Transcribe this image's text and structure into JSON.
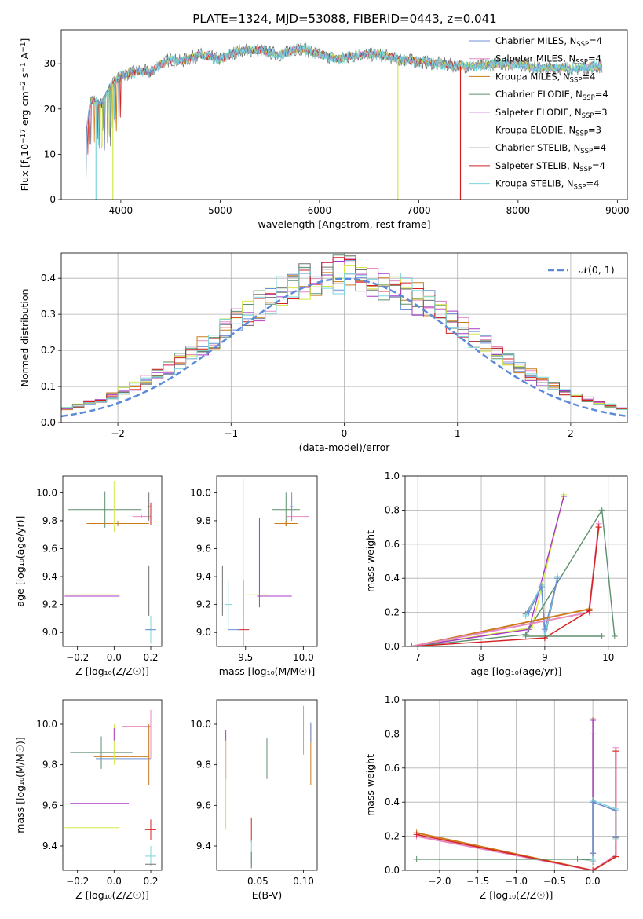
{
  "figure_title": "PLATE=1324, MJD=53088, FIBERID=0443, z=0.041",
  "colors": {
    "Chabrier MILES": "#6b8fd6",
    "Salpeter MILES": "#e78ac3",
    "Kroupa MILES": "#cc7a1a",
    "Chabrier ELODIE": "#5e8f6e",
    "Salpeter ELODIE": "#a838c8",
    "Kroupa ELODIE": "#d4e84a",
    "Chabrier STELIB": "#707070",
    "Salpeter STELIB": "#d42020",
    "Kroupa STELIB": "#7dd5dd",
    "gauss": "#5b8ad8"
  },
  "chart_data": [
    {
      "id": "spectrum",
      "type": "line",
      "xlabel": "wavelength [Angstrom, rest frame]",
      "ylabel_parts": {
        "pre": "Flux [f",
        "sub1": "λ",
        "mid": "10",
        "sup1": "−17",
        "post1": " erg cm",
        "sup2": "−2",
        "post2": " s",
        "sup3": "−1",
        "post3": " A",
        "sup4": "−1",
        "post4": "]"
      },
      "xlim": [
        3400,
        9100
      ],
      "ylim": [
        0,
        37.5
      ],
      "xticks": [
        4000,
        5000,
        6000,
        7000,
        8000,
        9000
      ],
      "yticks": [
        0,
        10,
        20,
        30
      ],
      "legend_loc": "upper right",
      "legend": [
        {
          "label": "Chabrier MILES, N",
          "sub": "SSP",
          "tail": "=4"
        },
        {
          "label": "Salpeter MILES, N",
          "sub": "SSP",
          "tail": "=4"
        },
        {
          "label": "Kroupa MILES, N",
          "sub": "SSP",
          "tail": "=4"
        },
        {
          "label": "Chabrier ELODIE, N",
          "sub": "SSP",
          "tail": "=4"
        },
        {
          "label": "Salpeter ELODIE, N",
          "sub": "SSP",
          "tail": "=3"
        },
        {
          "label": "Kroupa ELODIE, N",
          "sub": "SSP",
          "tail": "=3"
        },
        {
          "label": "Chabrier STELIB, N",
          "sub": "SSP",
          "tail": "=4"
        },
        {
          "label": "Salpeter STELIB, N",
          "sub": "SSP",
          "tail": "=4"
        },
        {
          "label": "Kroupa STELIB, N",
          "sub": "SSP",
          "tail": "=4"
        }
      ],
      "continuum": {
        "x": [
          3650,
          3700,
          3800,
          3900,
          4000,
          4100,
          4200,
          4300,
          4400,
          4500,
          4600,
          4800,
          5000,
          5200,
          5400,
          5600,
          5800,
          6000,
          6200,
          6400,
          6600,
          6800,
          7000,
          7200,
          7400,
          7600,
          7800,
          8000,
          8200,
          8400,
          8600,
          8850
        ],
        "y": [
          15,
          22,
          21,
          25,
          27.5,
          28,
          28.5,
          28,
          30,
          31,
          30.5,
          32,
          31,
          33,
          33,
          32,
          33.5,
          32,
          31,
          32,
          32,
          31,
          30.5,
          30,
          29.5,
          29.5,
          30,
          30,
          29,
          29,
          29,
          29.5
        ]
      },
      "dropouts": [
        {
          "series": "Kroupa STELIB",
          "x": 3750,
          "y": 0
        },
        {
          "series": "Kroupa ELODIE",
          "x": 3920,
          "y": 0
        },
        {
          "series": "Kroupa ELODIE",
          "x": 6790,
          "y": 0
        },
        {
          "series": "Salpeter STELIB",
          "x": 7420,
          "y": 0
        }
      ]
    },
    {
      "id": "residuals",
      "type": "step",
      "xlabel": "(data-model)/error",
      "ylabel": "Normed distribution",
      "xlim": [
        -2.5,
        2.5
      ],
      "ylim": [
        0,
        0.47
      ],
      "xticks": [
        -2,
        -1,
        0,
        1,
        2
      ],
      "xtick_labels": [
        "−2",
        "−1",
        "0",
        "1",
        "2"
      ],
      "yticks": [
        0.0,
        0.1,
        0.2,
        0.3,
        0.4
      ],
      "ytick_labels": [
        "0.0",
        "0.1",
        "0.2",
        "0.3",
        "0.4"
      ],
      "grid": true,
      "legend_label": "𝒩(0, 1)",
      "legend_loc": "upper right",
      "bin_width": 0.1
    },
    {
      "id": "age-vs-Z",
      "type": "errorbar",
      "xlabel": "Z [log₁₀(Z/Z☉)]",
      "ylabel": "age  [log₁₀(age/yr)]",
      "xlim": [
        -0.28,
        0.26
      ],
      "ylim": [
        8.9,
        10.12
      ],
      "xticks": [
        -0.2,
        0.0,
        0.2
      ],
      "xtick_labels": [
        "−0.2",
        "0.0",
        "0.2"
      ],
      "yticks": [
        9.0,
        9.2,
        9.4,
        9.6,
        9.8,
        10.0
      ],
      "ytick_labels": [
        "9.0",
        "9.2",
        "9.4",
        "9.6",
        "9.8",
        "10.0"
      ],
      "points": [
        {
          "s": "Chabrier ELODIE",
          "x": -0.05,
          "y": 9.88,
          "xe": 0.2,
          "ye": 0.13
        },
        {
          "s": "Kroupa MILES",
          "x": 0.02,
          "y": 9.78,
          "xe": 0.17,
          "ye": 0.02
        },
        {
          "s": "Salpeter MILES",
          "x": 0.15,
          "y": 9.83,
          "xe": 0.05,
          "ye": 0.01
        },
        {
          "s": "Kroupa ELODIE",
          "x": 0.0,
          "y": 9.9,
          "xe": 0.0,
          "ye": 0.18
        },
        {
          "s": "Kroupa ELODIE",
          "x": -0.12,
          "y": 9.27,
          "xe": 0.15,
          "ye": 0.0
        },
        {
          "s": "Salpeter ELODIE",
          "x": -0.12,
          "y": 9.26,
          "xe": 0.15,
          "ye": 0.0
        },
        {
          "s": "Chabrier STELIB",
          "x": 0.19,
          "y": 9.9,
          "xe": 0.01,
          "ye": 0.1
        },
        {
          "s": "Salpeter STELIB",
          "x": 0.2,
          "y": 9.85,
          "xe": 0.0,
          "ye": 0.08
        },
        {
          "s": "Chabrier STELIB",
          "x": 0.19,
          "y": 9.3,
          "xe": 0.0,
          "ye": 0.18
        },
        {
          "s": "Kroupa STELIB",
          "x": 0.2,
          "y": 9.02,
          "xe": 0.02,
          "ye": 0.1
        },
        {
          "s": "Chabrier MILES",
          "x": 0.2,
          "y": 9.02,
          "xe": 0.03,
          "ye": 0.0
        }
      ]
    },
    {
      "id": "age-vs-mass",
      "type": "errorbar",
      "xlabel": "mass [log₁₀(M/M☉)]",
      "xlim": [
        9.25,
        10.12
      ],
      "ylim": [
        8.9,
        10.12
      ],
      "xticks": [
        9.5,
        10.0
      ],
      "xtick_labels": [
        "9.5",
        "10.0"
      ],
      "yticks": [
        9.0,
        9.2,
        9.4,
        9.6,
        9.8,
        10.0
      ],
      "ytick_labels": [
        "9.0",
        "9.2",
        "9.4",
        "9.6",
        "9.8",
        "10.0"
      ],
      "points": [
        {
          "s": "Kroupa ELODIE",
          "x": 9.48,
          "y": 9.6,
          "xe": 0.0,
          "ye": 0.5
        },
        {
          "s": "Salpeter ELODIE",
          "x": 9.62,
          "y": 9.5,
          "xe": 0.0,
          "ye": 0.32
        },
        {
          "s": "Salpeter ELODIE",
          "x": 9.75,
          "y": 9.26,
          "xe": 0.15,
          "ye": 0.0
        },
        {
          "s": "Kroupa ELODIE",
          "x": 9.6,
          "y": 9.27,
          "xe": 0.1,
          "ye": 0.0
        },
        {
          "s": "Chabrier ELODIE",
          "x": 9.85,
          "y": 9.88,
          "xe": 0.12,
          "ye": 0.12
        },
        {
          "s": "Kroupa MILES",
          "x": 9.85,
          "y": 9.78,
          "xe": 0.1,
          "ye": 0.02
        },
        {
          "s": "Salpeter MILES",
          "x": 9.95,
          "y": 9.83,
          "xe": 0.1,
          "ye": 0.0
        },
        {
          "s": "Chabrier MILES",
          "x": 9.9,
          "y": 9.9,
          "xe": 0.02,
          "ye": 0.1
        },
        {
          "s": "Chabrier STELIB",
          "x": 9.3,
          "y": 9.3,
          "xe": 0.0,
          "ye": 0.18
        },
        {
          "s": "Kroupa STELIB",
          "x": 9.35,
          "y": 9.2,
          "xe": 0.03,
          "ye": 0.18
        },
        {
          "s": "Salpeter STELIB",
          "x": 9.48,
          "y": 9.02,
          "xe": 0.05,
          "ye": 0.35
        },
        {
          "s": "Chabrier MILES",
          "x": 9.4,
          "y": 9.02,
          "xe": 0.05,
          "ye": 0.0
        }
      ]
    },
    {
      "id": "massweight-vs-age",
      "type": "line",
      "xlabel": "age  [log₁₀(age/yr)]",
      "ylabel": "mass weight",
      "xlim": [
        6.8,
        10.3
      ],
      "ylim": [
        0,
        1
      ],
      "xticks": [
        7,
        8,
        9,
        10
      ],
      "xtick_labels": [
        "7",
        "8",
        "9",
        "10"
      ],
      "yticks": [
        0.0,
        0.2,
        0.4,
        0.6,
        0.8,
        1.0
      ],
      "ytick_labels": [
        "0.0",
        "0.2",
        "0.4",
        "0.6",
        "0.8",
        "1.0"
      ],
      "grid": true,
      "series": [
        {
          "s": "Kroupa ELODIE",
          "x": [
            6.9,
            8.8,
            9.3
          ],
          "y": [
            0.0,
            0.11,
            0.89
          ]
        },
        {
          "s": "Salpeter ELODIE",
          "x": [
            6.9,
            8.75,
            9.3
          ],
          "y": [
            0.0,
            0.1,
            0.88
          ]
        },
        {
          "s": "Chabrier ELODIE",
          "x": [
            6.9,
            8.7,
            9.9,
            10.1
          ],
          "y": [
            0.0,
            0.07,
            0.8,
            0.06
          ]
        },
        {
          "s": "Chabrier STELIB",
          "x": [
            8.7,
            8.95,
            9.0,
            9.2
          ],
          "y": [
            0.19,
            0.35,
            0.05,
            0.4
          ]
        },
        {
          "s": "Kroupa STELIB",
          "x": [
            8.7,
            8.95,
            9.0,
            9.2
          ],
          "y": [
            0.18,
            0.36,
            0.06,
            0.41
          ]
        },
        {
          "s": "Chabrier MILES",
          "x": [
            8.75,
            8.95,
            9.0,
            9.2
          ],
          "y": [
            0.2,
            0.35,
            0.1,
            0.4
          ]
        },
        {
          "s": "Kroupa MILES",
          "x": [
            6.9,
            9.7,
            9.85,
            9.7
          ],
          "y": [
            0.0,
            0.22,
            0.7,
            0.22
          ]
        },
        {
          "s": "Salpeter MILES",
          "x": [
            6.9,
            9.7,
            9.85
          ],
          "y": [
            0.0,
            0.2,
            0.72
          ]
        },
        {
          "s": "Salpeter STELIB",
          "x": [
            6.9,
            9.0,
            9.7,
            9.85
          ],
          "y": [
            0.0,
            0.05,
            0.21,
            0.7
          ]
        },
        {
          "s": "Chabrier ELODIE",
          "x": [
            8.7,
            9.9
          ],
          "y": [
            0.06,
            0.06
          ]
        }
      ]
    },
    {
      "id": "mass-vs-Z",
      "type": "errorbar",
      "xlabel": "Z [log₁₀(Z/Z☉)]",
      "ylabel": "mass [log₁₀(M/M☉)]",
      "xlim": [
        -0.28,
        0.26
      ],
      "ylim": [
        9.28,
        10.12
      ],
      "xticks": [
        -0.2,
        0.0,
        0.2
      ],
      "xtick_labels": [
        "−0.2",
        "0.0",
        "0.2"
      ],
      "yticks": [
        9.4,
        9.6,
        9.8,
        10.0
      ],
      "ytick_labels": [
        "9.4",
        "9.6",
        "9.8",
        "10.0"
      ],
      "points": [
        {
          "s": "Chabrier ELODIE",
          "x": -0.07,
          "y": 9.86,
          "xe": 0.17,
          "ye": 0.08
        },
        {
          "s": "Kroupa MILES",
          "x": 0.04,
          "y": 9.84,
          "xe": 0.15,
          "ye": 0.0
        },
        {
          "s": "Chabrier MILES",
          "x": 0.05,
          "y": 9.83,
          "xe": 0.15,
          "ye": 0.0
        },
        {
          "s": "Salpeter MILES",
          "x": 0.12,
          "y": 9.99,
          "xe": 0.08,
          "ye": 0.0
        },
        {
          "s": "Salpeter ELODIE",
          "x": -0.08,
          "y": 9.61,
          "xe": 0.16,
          "ye": 0.0
        },
        {
          "s": "Kroupa ELODIE",
          "x": -0.12,
          "y": 9.49,
          "xe": 0.15,
          "ye": 0.0
        },
        {
          "s": "Kroupa ELODIE",
          "x": 0.0,
          "y": 9.9,
          "xe": 0.0,
          "ye": 0.1
        },
        {
          "s": "Salpeter ELODIE",
          "x": 0.0,
          "y": 9.95,
          "xe": 0.0,
          "ye": 0.03
        },
        {
          "s": "Salpeter MILES",
          "x": 0.2,
          "y": 9.95,
          "xe": 0.0,
          "ye": 0.12
        },
        {
          "s": "Kroupa MILES",
          "x": 0.19,
          "y": 9.85,
          "xe": 0.0,
          "ye": 0.15
        },
        {
          "s": "Salpeter STELIB",
          "x": 0.2,
          "y": 9.48,
          "xe": 0.03,
          "ye": 0.05
        },
        {
          "s": "Kroupa STELIB",
          "x": 0.2,
          "y": 9.35,
          "xe": 0.03,
          "ye": 0.05
        },
        {
          "s": "Chabrier STELIB",
          "x": 0.2,
          "y": 9.31,
          "xe": 0.03,
          "ye": 0.0
        }
      ]
    },
    {
      "id": "mass-vs-EBV",
      "type": "errorbar",
      "xlabel": "E(B-V)",
      "xlim": [
        0.005,
        0.115
      ],
      "ylim": [
        9.28,
        10.12
      ],
      "xticks": [
        0.05,
        0.1
      ],
      "xtick_labels": [
        "0.05",
        "0.10"
      ],
      "yticks": [
        9.4,
        9.6,
        9.8,
        10.0
      ],
      "ytick_labels": [
        "9.4",
        "9.6",
        "9.8",
        "10.0"
      ],
      "points": [
        {
          "s": "Salpeter ELODIE",
          "x": 0.015,
          "y": 9.85,
          "xe": 0.0,
          "ye": 0.12
        },
        {
          "s": "Kroupa ELODIE",
          "x": 0.015,
          "y": 9.7,
          "xe": 0.0,
          "ye": 0.22
        },
        {
          "s": "Salpeter STELIB",
          "x": 0.043,
          "y": 9.48,
          "xe": 0.0,
          "ye": 0.06
        },
        {
          "s": "Kroupa STELIB",
          "x": 0.043,
          "y": 9.37,
          "xe": 0.0,
          "ye": 0.06
        },
        {
          "s": "Chabrier STELIB",
          "x": 0.043,
          "y": 9.33,
          "xe": 0.0,
          "ye": 0.04
        },
        {
          "s": "Chabrier ELODIE",
          "x": 0.06,
          "y": 9.83,
          "xe": 0.0,
          "ye": 0.1
        },
        {
          "s": "Salpeter MILES",
          "x": 0.1,
          "y": 9.97,
          "xe": 0.0,
          "ye": 0.12
        },
        {
          "s": "Kroupa MILES",
          "x": 0.108,
          "y": 9.85,
          "xe": 0.0,
          "ye": 0.15
        },
        {
          "s": "Chabrier MILES",
          "x": 0.108,
          "y": 9.96,
          "xe": 0.0,
          "ye": 0.05
        }
      ]
    },
    {
      "id": "massweight-vs-Z",
      "type": "line",
      "xlabel": "Z [log₁₀(Z/Z☉)]",
      "ylabel": "mass weight",
      "xlim": [
        -2.45,
        0.45
      ],
      "ylim": [
        0,
        1
      ],
      "xticks": [
        -2.0,
        -1.5,
        -1.0,
        -0.5,
        0.0
      ],
      "xtick_labels": [
        "−2.0",
        "−1.5",
        "−1.0",
        "−0.5",
        "0.0"
      ],
      "yticks": [
        0.0,
        0.2,
        0.4,
        0.6,
        0.8,
        1.0
      ],
      "ytick_labels": [
        "0.0",
        "0.2",
        "0.4",
        "0.6",
        "0.8",
        "1.0"
      ],
      "grid": true,
      "series": [
        {
          "s": "Kroupa MILES",
          "x": [
            -2.3,
            0.0,
            0.3,
            0.3
          ],
          "y": [
            0.22,
            0.0,
            0.08,
            0.7
          ]
        },
        {
          "s": "Salpeter MILES",
          "x": [
            -2.3,
            0.0,
            0.3,
            0.3
          ],
          "y": [
            0.2,
            0.0,
            0.09,
            0.72
          ]
        },
        {
          "s": "Salpeter STELIB",
          "x": [
            -2.3,
            0.0,
            0.3,
            0.3
          ],
          "y": [
            0.21,
            0.0,
            0.08,
            0.7
          ]
        },
        {
          "s": "Chabrier ELODIE",
          "x": [
            -2.3,
            -0.2,
            0.0,
            0.0
          ],
          "y": [
            0.065,
            0.065,
            0.06,
            0.8
          ]
        },
        {
          "s": "Kroupa ELODIE",
          "x": [
            0.0,
            0.0
          ],
          "y": [
            0.1,
            0.89
          ]
        },
        {
          "s": "Salpeter ELODIE",
          "x": [
            0.0,
            0.0
          ],
          "y": [
            0.1,
            0.88
          ]
        },
        {
          "s": "Chabrier STELIB",
          "x": [
            0.0,
            0.0,
            0.3,
            0.3
          ],
          "y": [
            0.05,
            0.4,
            0.35,
            0.19
          ]
        },
        {
          "s": "Kroupa STELIB",
          "x": [
            0.0,
            0.0,
            0.3,
            0.3
          ],
          "y": [
            0.06,
            0.41,
            0.36,
            0.18
          ]
        },
        {
          "s": "Chabrier MILES",
          "x": [
            0.0,
            0.0,
            0.3,
            0.3
          ],
          "y": [
            0.1,
            0.4,
            0.35,
            0.2
          ]
        }
      ]
    }
  ]
}
